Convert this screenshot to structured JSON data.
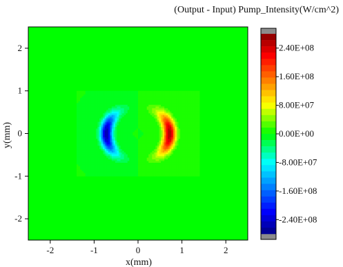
{
  "chart_data": {
    "type": "heatmap",
    "title": "(Output - Input) Pump_Intensity(W/cm^2)",
    "xlabel": "x(mm)",
    "ylabel": "y(mm)",
    "xlim": [
      -2.5,
      2.5
    ],
    "ylim": [
      -2.5,
      2.5
    ],
    "x_ticks": [
      -2,
      -1,
      0,
      1,
      2
    ],
    "y_ticks": [
      -2,
      -1,
      0,
      1,
      2
    ],
    "x_tick_labels": [
      "-2",
      "-1",
      "0",
      "1",
      "2"
    ],
    "y_tick_labels": [
      "-2",
      "-1",
      "0",
      "1",
      "2"
    ],
    "grid": false,
    "colorbar": {
      "range": [
        -280000000.0,
        280000000.0
      ],
      "ticks": [
        240000000.0,
        160000000.0,
        80000000.0,
        0,
        -80000000.0,
        -160000000.0,
        -240000000.0
      ],
      "labels": [
        "2.40E+08",
        "1.60E+08",
        "8.00E+07",
        "0.00E+00",
        "-8.00E+07",
        "-1.60E+08",
        "-2.40E+08"
      ],
      "levels": 32,
      "overflow_color": "#8c8c8c"
    },
    "features": [
      {
        "kind": "negative-crescent",
        "center_x": -0.65,
        "center_y": 0.0,
        "peak_value": -260000000.0,
        "y_extent": [
          -0.6,
          0.65
        ]
      },
      {
        "kind": "positive-crescent",
        "center_x": 0.65,
        "center_y": 0.0,
        "peak_value": 260000000.0,
        "y_extent": [
          -0.6,
          0.65
        ]
      }
    ],
    "background_value": 0
  }
}
